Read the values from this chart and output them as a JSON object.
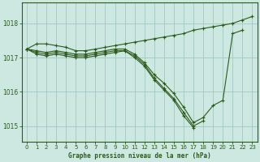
{
  "title": "Graphe pression niveau de la mer (hPa)",
  "background_color": "#cce8e0",
  "grid_color": "#aaccc4",
  "line_color": "#2d5a1b",
  "xlim": [
    -0.5,
    23.5
  ],
  "ylim": [
    1014.55,
    1018.6
  ],
  "yticks": [
    1015,
    1016,
    1017,
    1018
  ],
  "xticks": [
    0,
    1,
    2,
    3,
    4,
    5,
    6,
    7,
    8,
    9,
    10,
    11,
    12,
    13,
    14,
    15,
    16,
    17,
    18,
    19,
    20,
    21,
    22,
    23
  ],
  "series": [
    [
      1017.25,
      1017.4,
      1017.4,
      1017.35,
      1017.3,
      1017.2,
      1017.2,
      1017.25,
      1017.3,
      1017.35,
      1017.4,
      1017.45,
      1017.5,
      1017.55,
      1017.6,
      1017.65,
      1017.7,
      1017.8,
      1017.85,
      1017.9,
      1017.95,
      1018.0,
      1018.1,
      1018.2
    ],
    [
      1017.25,
      1017.2,
      1017.15,
      1017.2,
      1017.15,
      1017.1,
      1017.1,
      1017.15,
      1017.2,
      1017.25,
      1017.25,
      1017.1,
      1016.85,
      1016.5,
      1016.25,
      1015.95,
      1015.55,
      1015.1,
      1015.25,
      1015.6,
      1015.75,
      1017.7,
      1017.8,
      null
    ],
    [
      1017.25,
      1017.15,
      1017.1,
      1017.15,
      1017.1,
      1017.05,
      1017.05,
      1017.1,
      1017.15,
      1017.2,
      1017.2,
      1017.05,
      1016.8,
      1016.4,
      1016.1,
      1015.8,
      1015.4,
      1015.0,
      1015.15,
      null,
      null,
      null,
      null,
      null
    ],
    [
      1017.25,
      1017.1,
      1017.05,
      1017.1,
      1017.05,
      1017.0,
      1017.0,
      1017.05,
      1017.1,
      1017.15,
      1017.2,
      1017.0,
      1016.75,
      1016.35,
      1016.05,
      1015.75,
      1015.3,
      1014.95,
      null,
      null,
      null,
      null,
      null,
      null
    ]
  ]
}
